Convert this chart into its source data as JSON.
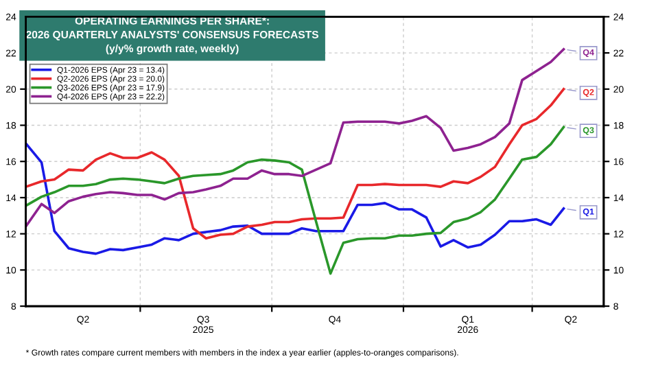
{
  "chart_data": {
    "type": "line",
    "title": "OPERATING EARNINGS PER SHARE*:\n2026 QUARTERLY ANALYSTS' CONSENSUS FORECASTS\n(y/y% growth rate, weekly)",
    "x": [
      "2025-04-12",
      "2025-04-23",
      "2025-05-02",
      "2025-05-12",
      "2025-05-22",
      "2025-05-31",
      "2025-06-10",
      "2025-06-19",
      "2025-06-29",
      "2025-07-09",
      "2025-07-18",
      "2025-07-28",
      "2025-08-07",
      "2025-08-16",
      "2025-08-26",
      "2025-09-04",
      "2025-09-14",
      "2025-09-24",
      "2025-10-03",
      "2025-10-13",
      "2025-10-22",
      "2025-11-01",
      "2025-11-11",
      "2025-11-20",
      "2025-11-30",
      "2025-12-10",
      "2025-12-19",
      "2025-12-29",
      "2026-01-07",
      "2026-01-17",
      "2026-01-27",
      "2026-02-05",
      "2026-02-15",
      "2026-02-24",
      "2026-03-06",
      "2026-03-16",
      "2026-03-25",
      "2026-04-04",
      "2026-04-14",
      "2026-04-23"
    ],
    "series": [
      {
        "name": "Q1-2026 EPS (Apr 23 = 13.4)",
        "color": "#1a1ae6",
        "values": [
          17.0,
          15.95,
          12.15,
          11.2,
          11.0,
          10.9,
          11.15,
          11.1,
          11.25,
          11.4,
          11.75,
          11.65,
          12.0,
          12.1,
          12.2,
          12.4,
          12.45,
          12.0,
          12.0,
          12.0,
          12.3,
          12.15,
          12.15,
          12.15,
          13.6,
          13.6,
          13.7,
          13.35,
          13.35,
          12.9,
          11.3,
          11.65,
          11.25,
          11.4,
          11.95,
          12.7,
          12.7,
          12.8,
          12.5,
          13.4
        ]
      },
      {
        "name": "Q2-2026 EPS (Apr 23 = 20.0)",
        "color": "#e8282b",
        "values": [
          14.6,
          14.9,
          15.0,
          15.55,
          15.5,
          16.1,
          16.45,
          16.2,
          16.2,
          16.5,
          16.1,
          15.2,
          12.3,
          11.75,
          11.95,
          12.0,
          12.4,
          12.5,
          12.65,
          12.65,
          12.8,
          12.85,
          12.85,
          12.9,
          14.7,
          14.7,
          14.75,
          14.7,
          14.7,
          14.7,
          14.6,
          14.9,
          14.8,
          15.15,
          15.7,
          16.95,
          18.0,
          18.35,
          19.1,
          20.0
        ]
      },
      {
        "name": "Q3-2026 EPS (Apr 23 = 17.9)",
        "color": "#2a972a",
        "values": [
          13.55,
          14.05,
          14.3,
          14.65,
          14.65,
          14.75,
          15.0,
          15.05,
          15.0,
          14.9,
          14.8,
          15.05,
          15.2,
          15.25,
          15.3,
          15.5,
          15.95,
          16.1,
          16.05,
          15.95,
          15.55,
          12.65,
          9.8,
          11.5,
          11.7,
          11.75,
          11.75,
          11.9,
          11.9,
          12.0,
          12.05,
          12.65,
          12.85,
          13.2,
          13.9,
          15.05,
          16.1,
          16.25,
          16.95,
          17.9
        ]
      },
      {
        "name": "Q4-2026 EPS (Apr 23 = 22.2)",
        "color": "#8e2290",
        "values": [
          12.4,
          13.65,
          13.15,
          13.8,
          14.05,
          14.2,
          14.3,
          14.25,
          14.15,
          14.15,
          13.9,
          14.25,
          14.3,
          14.45,
          14.65,
          15.05,
          15.05,
          15.5,
          15.3,
          15.3,
          15.2,
          15.55,
          15.9,
          18.15,
          18.2,
          18.2,
          18.2,
          18.1,
          18.25,
          18.5,
          17.85,
          16.6,
          16.75,
          16.95,
          17.35,
          18.1,
          20.5,
          21.0,
          21.5,
          22.2
        ]
      }
    ],
    "xlim": [
      "2025-04-12",
      "2026-05-21"
    ],
    "xticks": [
      {
        "value": "2025-05-22",
        "label": "Q2"
      },
      {
        "value": "2025-07-01",
        "label": null
      },
      {
        "value": "2025-08-14",
        "label": "Q3\n2025"
      },
      {
        "value": "2025-10-01",
        "label": null
      },
      {
        "value": "2025-11-14",
        "label": "Q4"
      },
      {
        "value": "2026-01-01",
        "label": null
      },
      {
        "value": "2026-02-15",
        "label": "Q1\n2026"
      },
      {
        "value": "2026-04-01",
        "label": null
      },
      {
        "value": "2026-04-28",
        "label": "Q2"
      }
    ],
    "ylim": [
      8,
      24
    ],
    "yticks": [
      8,
      10,
      12,
      14,
      16,
      18,
      20,
      22,
      24
    ],
    "y2lim": [
      8,
      24
    ],
    "y2ticks": [
      8,
      10,
      12,
      14,
      16,
      18,
      20,
      22,
      24
    ],
    "grid": true,
    "legend": "top left",
    "line_style": "solid",
    "marker": "none",
    "annotations": [
      {
        "text": "Q1",
        "x": "2026-04-23",
        "y": 13.4
      },
      {
        "text": "Q2",
        "x": "2026-04-23",
        "y": 20.0
      },
      {
        "text": "Q3",
        "x": "2026-04-23",
        "y": 17.9
      },
      {
        "text": "Q4",
        "x": "2026-04-23",
        "y": 22.2
      },
      "* Growth rates compare current members with members in the index a year earlier (apples-to-oranges comparisons)."
    ]
  }
}
